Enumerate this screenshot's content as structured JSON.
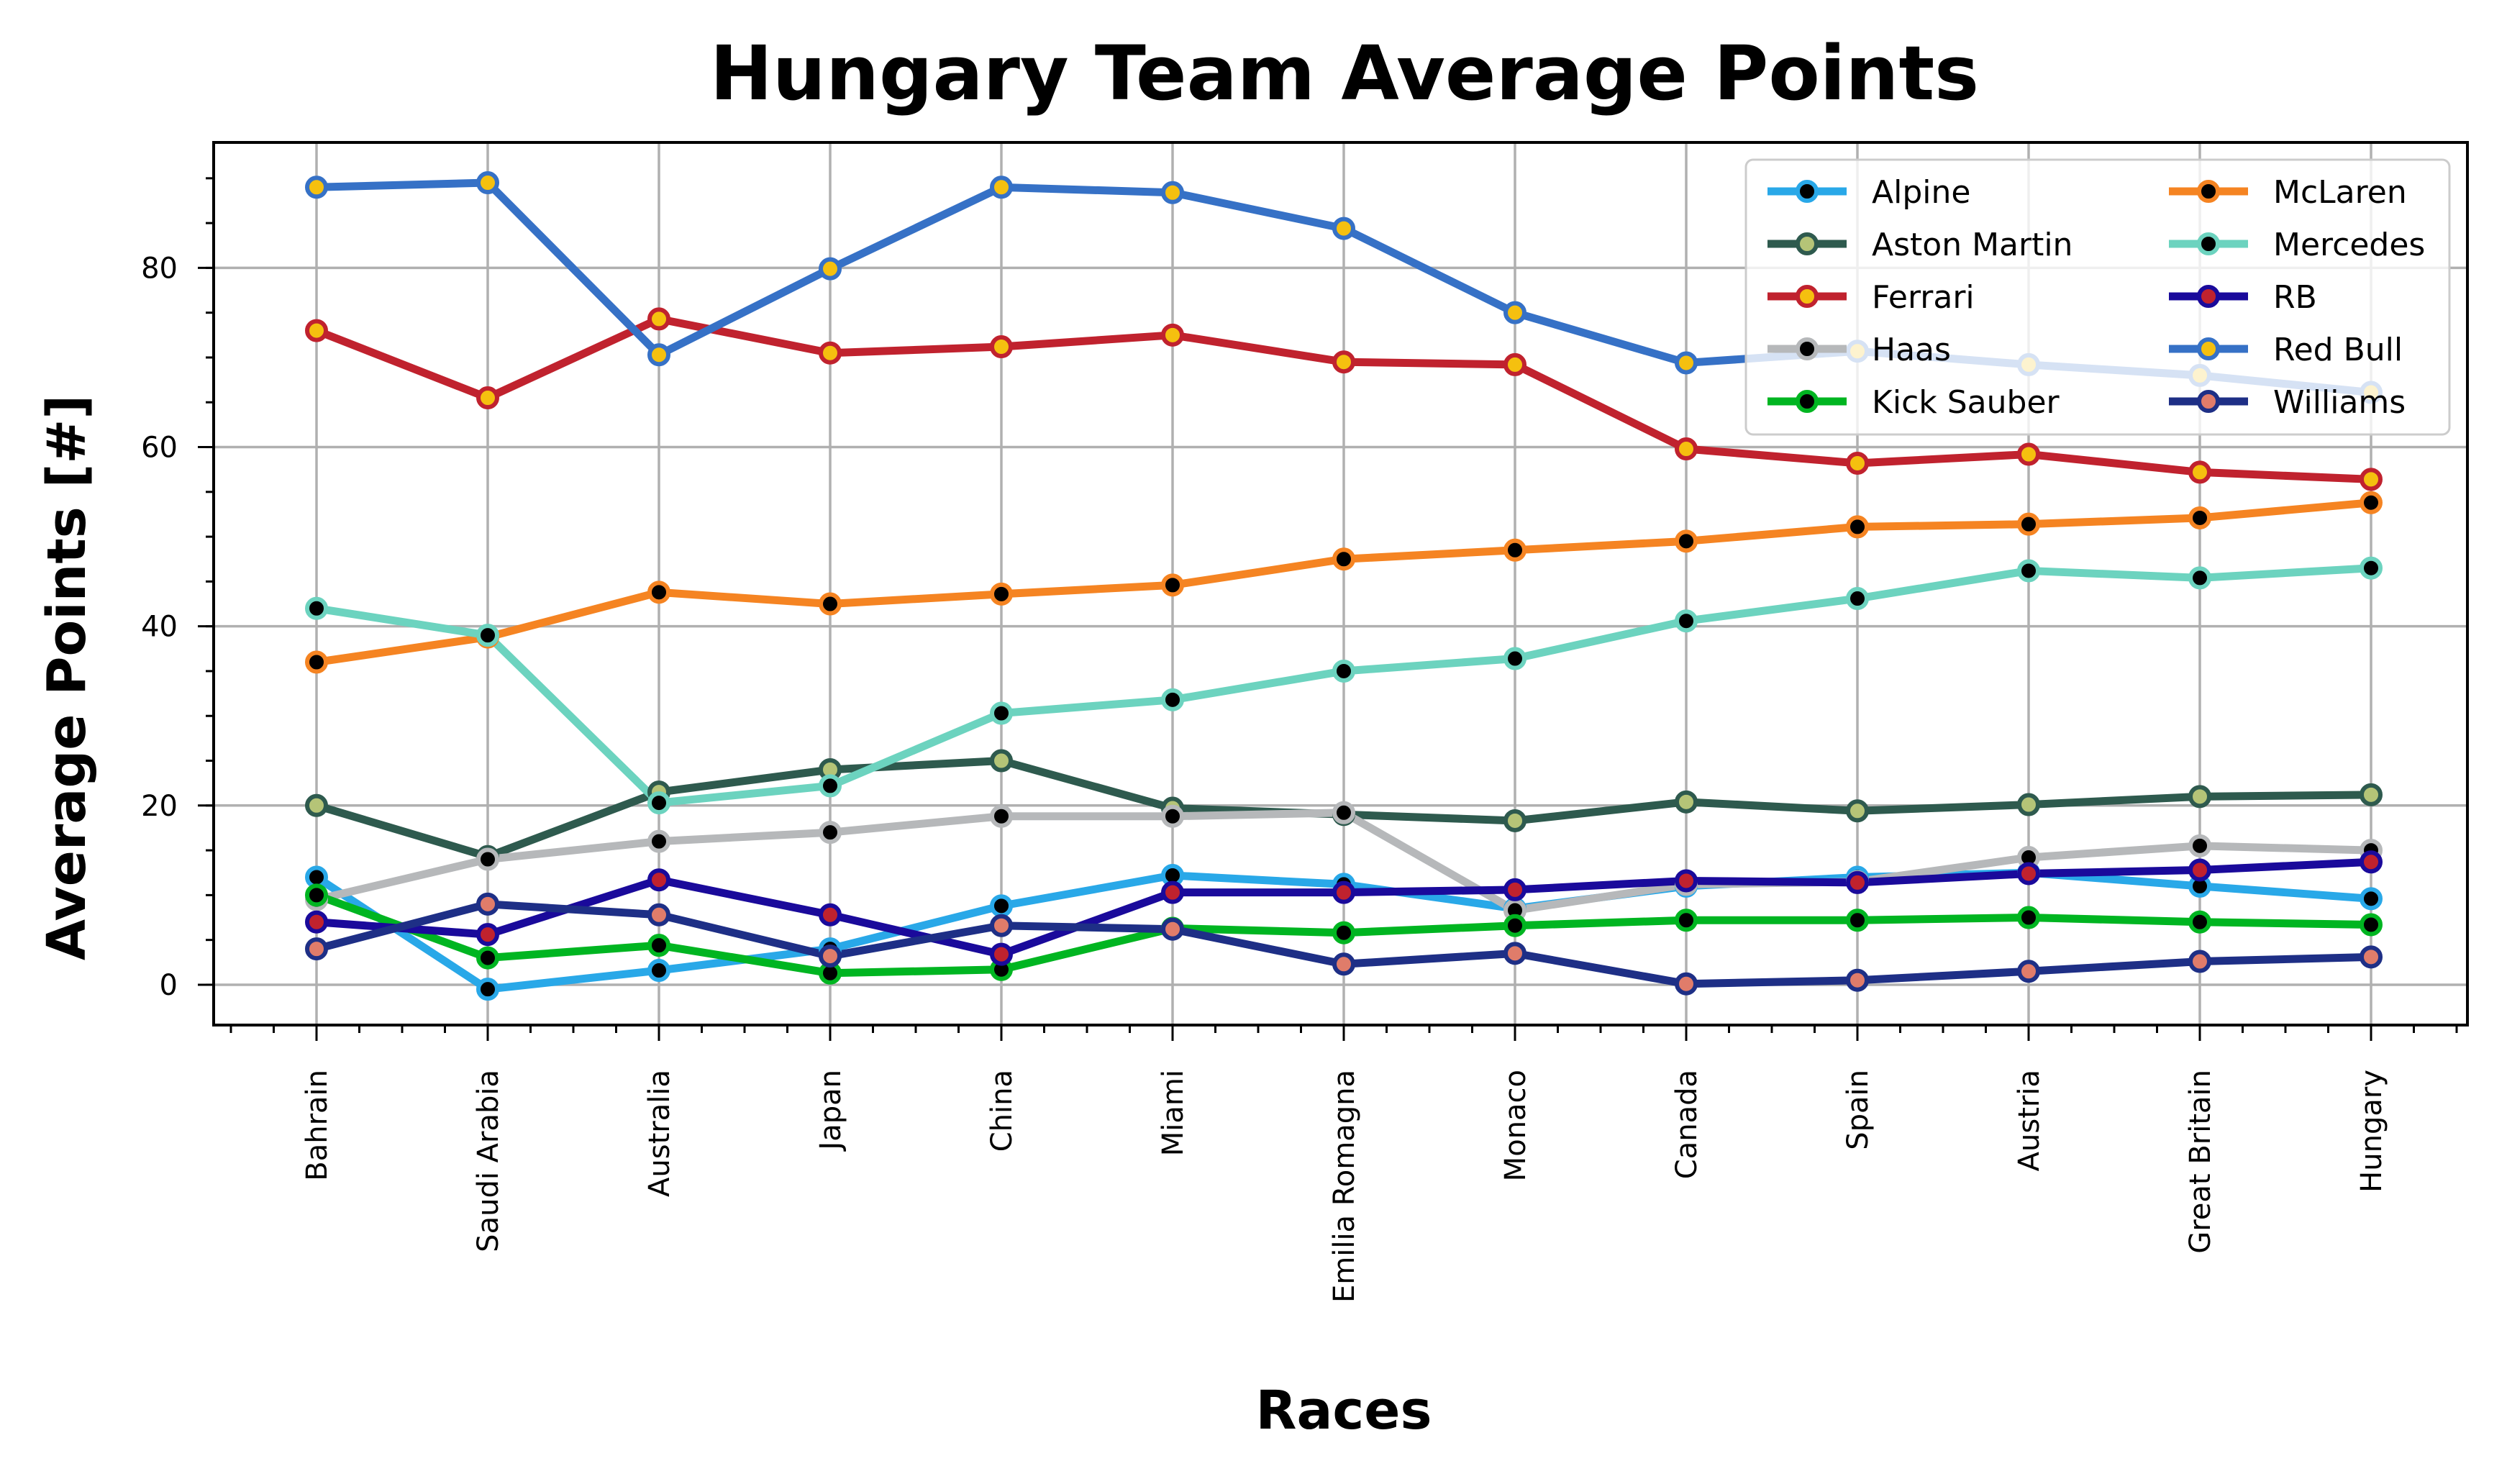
{
  "chart_data": {
    "type": "line",
    "title": "Hungary Team Average Points",
    "xlabel": "Races",
    "ylabel": "Average Points [#]",
    "categories": [
      "Bahrain",
      "Saudi Arabia",
      "Australia",
      "Japan",
      "China",
      "Miami",
      "Emilia Romagna",
      "Monaco",
      "Canada",
      "Spain",
      "Austria",
      "Great Britain",
      "Hungary"
    ],
    "ylim": [
      -4.5,
      94
    ],
    "yticks": [
      0,
      20,
      40,
      60,
      80
    ],
    "grid": true,
    "legend_position": "top-right",
    "legend_columns": 2,
    "series": [
      {
        "name": "Alpine",
        "color": "#29a8e8",
        "marker_face": "#000000",
        "marker_edge": "#29a8e8",
        "values": [
          12.0,
          -0.5,
          1.6,
          4.0,
          8.8,
          12.2,
          11.2,
          8.5,
          11.0,
          12.0,
          12.5,
          11.0,
          9.6
        ]
      },
      {
        "name": "Aston Martin",
        "color": "#2e5a4e",
        "marker_face": "#b5c477",
        "marker_edge": "#2e5a4e",
        "values": [
          20.0,
          14.3,
          21.5,
          24.0,
          25.0,
          19.7,
          19.0,
          18.3,
          20.4,
          19.4,
          20.1,
          21.0,
          21.2
        ]
      },
      {
        "name": "Ferrari",
        "color": "#c0222e",
        "marker_face": "#f5c00f",
        "marker_edge": "#c0222e",
        "values": [
          73.0,
          65.5,
          74.3,
          70.5,
          71.2,
          72.5,
          69.5,
          69.2,
          59.8,
          58.2,
          59.2,
          57.2,
          56.4
        ]
      },
      {
        "name": "Haas",
        "color": "#b6b8ba",
        "marker_face": "#000000",
        "marker_edge": "#b6b8ba",
        "values": [
          9.5,
          14.0,
          16.0,
          17.0,
          18.8,
          18.8,
          19.2,
          8.3,
          11.2,
          11.5,
          14.2,
          15.5,
          15.0
        ]
      },
      {
        "name": "Kick Sauber",
        "color": "#00b521",
        "marker_face": "#000000",
        "marker_edge": "#00b521",
        "values": [
          10.0,
          3.0,
          4.4,
          1.3,
          1.7,
          6.3,
          5.8,
          6.6,
          7.2,
          7.2,
          7.5,
          7.0,
          6.7
        ]
      },
      {
        "name": "McLaren",
        "color": "#f58422",
        "marker_face": "#000000",
        "marker_edge": "#f58422",
        "values": [
          36.0,
          38.8,
          43.8,
          42.5,
          43.6,
          44.6,
          47.5,
          48.5,
          49.5,
          51.1,
          51.4,
          52.1,
          53.8
        ]
      },
      {
        "name": "Mercedes",
        "color": "#6cd3bf",
        "marker_face": "#000000",
        "marker_edge": "#6cd3bf",
        "values": [
          42.0,
          39.0,
          20.3,
          22.2,
          30.3,
          31.8,
          35.0,
          36.4,
          40.6,
          43.1,
          46.2,
          45.4,
          46.5
        ]
      },
      {
        "name": "RB",
        "color": "#1a0a9b",
        "marker_face": "#c0222e",
        "marker_edge": "#1a0a9b",
        "values": [
          7.0,
          5.6,
          11.7,
          7.8,
          3.4,
          10.3,
          10.3,
          10.6,
          11.6,
          11.4,
          12.4,
          12.8,
          13.7
        ]
      },
      {
        "name": "Red Bull",
        "color": "#3671c6",
        "marker_face": "#f5c00f",
        "marker_edge": "#3671c6",
        "values": [
          89.0,
          89.5,
          70.3,
          79.9,
          89.0,
          88.4,
          84.4,
          75.0,
          69.4,
          70.7,
          69.2,
          68.0,
          66.1
        ]
      },
      {
        "name": "Williams",
        "color": "#1e2f86",
        "marker_face": "#e07c6a",
        "marker_edge": "#1e2f86",
        "values": [
          4.0,
          9.0,
          7.8,
          3.2,
          6.6,
          6.2,
          2.3,
          3.5,
          0.1,
          0.5,
          1.5,
          2.6,
          3.1
        ]
      }
    ]
  }
}
